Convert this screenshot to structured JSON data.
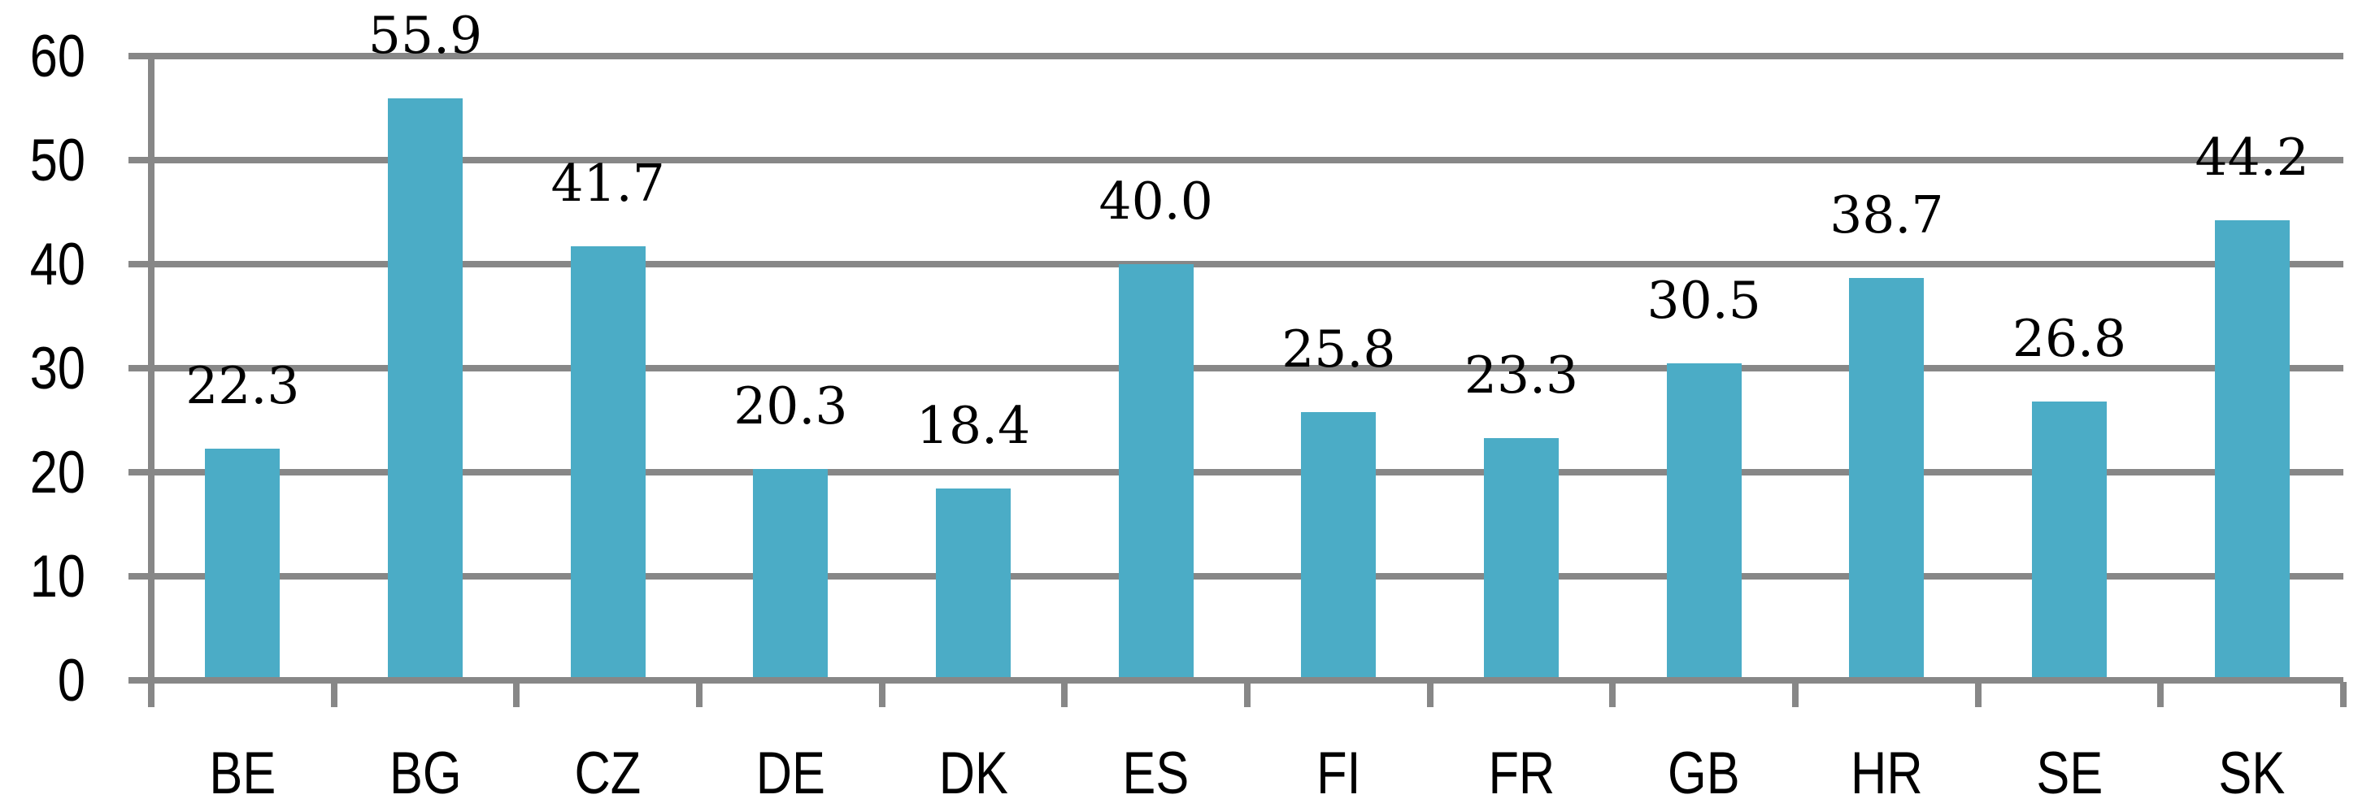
{
  "chart_data": {
    "type": "bar",
    "title": "",
    "xlabel": "",
    "ylabel": "",
    "categories": [
      "BE",
      "BG",
      "CZ",
      "DE",
      "DK",
      "ES",
      "FI",
      "FR",
      "GB",
      "HR",
      "SE",
      "SK"
    ],
    "values": [
      22.3,
      55.9,
      41.7,
      20.3,
      18.4,
      40.0,
      25.8,
      23.3,
      30.5,
      38.7,
      26.8,
      44.2
    ],
    "value_labels": [
      "22.3",
      "55.9",
      "41.7",
      "20.3",
      "18.4",
      "40.0",
      "25.8",
      "23.3",
      "30.5",
      "38.7",
      "26.8",
      "44.2"
    ],
    "yticks": [
      0,
      10,
      20,
      30,
      40,
      50,
      60
    ],
    "ytick_labels": [
      "0",
      "10",
      "20",
      "30",
      "40",
      "50",
      "60"
    ],
    "ylim": [
      0,
      60
    ],
    "grid": true,
    "legend_position": "none",
    "bar_color": "#4BACC6",
    "grid_color": "#878787",
    "text_color": "#000000",
    "background_color": "#FFFFFF"
  }
}
